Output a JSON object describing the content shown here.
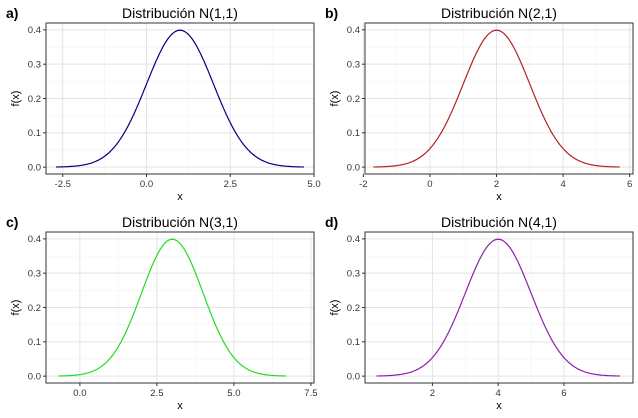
{
  "chart_data": [
    {
      "type": "line",
      "tag": "a)",
      "title": "Distribución N(1,1)",
      "xlabel": "x",
      "ylabel": "f(x)",
      "mean": 1,
      "sd": 1,
      "x": [
        -2.7,
        -2.0,
        -1.5,
        -1.0,
        -0.5,
        0.0,
        0.5,
        1.0,
        1.5,
        2.0,
        2.5,
        3.0,
        3.5,
        4.0,
        4.7
      ],
      "y": [
        0.0004,
        0.0044,
        0.0175,
        0.054,
        0.1295,
        0.242,
        0.3521,
        0.3989,
        0.3521,
        0.242,
        0.1295,
        0.054,
        0.0175,
        0.0044,
        0.0004
      ],
      "xlim": [
        -3.0,
        5.0
      ],
      "ylim": [
        0,
        0.4
      ],
      "xticks": [
        -2.5,
        0.0,
        2.5,
        5.0
      ],
      "xtick_labels": [
        "-2.5",
        "0.0",
        "2.5",
        "5.0"
      ],
      "yticks": [
        0.0,
        0.1,
        0.2,
        0.3,
        0.4
      ],
      "ytick_labels": [
        "0.0",
        "0.1",
        "0.2",
        "0.3",
        "0.4"
      ],
      "color": "#000080",
      "grid": true
    },
    {
      "type": "line",
      "tag": "b)",
      "title": "Distribución N(2,1)",
      "xlabel": "x",
      "ylabel": "f(x)",
      "mean": 2,
      "sd": 1,
      "x": [
        -1.7,
        -1.0,
        -0.5,
        0.0,
        0.5,
        1.0,
        1.5,
        2.0,
        2.5,
        3.0,
        3.5,
        4.0,
        4.5,
        5.0,
        5.7
      ],
      "y": [
        0.0004,
        0.0044,
        0.0175,
        0.054,
        0.1295,
        0.242,
        0.3521,
        0.3989,
        0.3521,
        0.242,
        0.1295,
        0.054,
        0.0175,
        0.0044,
        0.0004
      ],
      "xlim": [
        -1.95,
        6.1
      ],
      "ylim": [
        0,
        0.4
      ],
      "xticks": [
        -2,
        0,
        2,
        4,
        6
      ],
      "xtick_labels": [
        "-2",
        "0",
        "2",
        "4",
        "6"
      ],
      "yticks": [
        0.0,
        0.1,
        0.2,
        0.3,
        0.4
      ],
      "ytick_labels": [
        "0.0",
        "0.1",
        "0.2",
        "0.3",
        "0.4"
      ],
      "color": "#b22222",
      "grid": true
    },
    {
      "type": "line",
      "tag": "c)",
      "title": "Distribución N(3,1)",
      "xlabel": "x",
      "ylabel": "f(x)",
      "mean": 3,
      "sd": 1,
      "x": [
        -0.7,
        0.0,
        0.5,
        1.0,
        1.5,
        2.0,
        2.5,
        3.0,
        3.5,
        4.0,
        4.5,
        5.0,
        5.5,
        6.0,
        6.7
      ],
      "y": [
        0.0004,
        0.0044,
        0.0175,
        0.054,
        0.1295,
        0.242,
        0.3521,
        0.3989,
        0.3521,
        0.242,
        0.1295,
        0.054,
        0.0175,
        0.0044,
        0.0004
      ],
      "xlim": [
        -1.1,
        7.6
      ],
      "ylim": [
        0,
        0.4
      ],
      "xticks": [
        0.0,
        2.5,
        5.0,
        7.5
      ],
      "xtick_labels": [
        "0.0",
        "2.5",
        "5.0",
        "7.5"
      ],
      "yticks": [
        0.0,
        0.1,
        0.2,
        0.3,
        0.4
      ],
      "ytick_labels": [
        "0.0",
        "0.1",
        "0.2",
        "0.3",
        "0.4"
      ],
      "color": "#22dd22",
      "grid": true
    },
    {
      "type": "line",
      "tag": "d)",
      "title": "Distribución N(4,1)",
      "xlabel": "x",
      "ylabel": "f(x)",
      "mean": 4,
      "sd": 1,
      "x": [
        0.3,
        1.0,
        1.5,
        2.0,
        2.5,
        3.0,
        3.5,
        4.0,
        4.5,
        5.0,
        5.5,
        6.0,
        6.5,
        7.0,
        7.7
      ],
      "y": [
        0.0004,
        0.0044,
        0.0175,
        0.054,
        0.1295,
        0.242,
        0.3521,
        0.3989,
        0.3521,
        0.242,
        0.1295,
        0.054,
        0.0175,
        0.0044,
        0.0004
      ],
      "xlim": [
        -0.05,
        8.1
      ],
      "ylim": [
        0,
        0.4
      ],
      "xticks": [
        2,
        4,
        6
      ],
      "xtick_labels": [
        "2",
        "4",
        "6"
      ],
      "yticks": [
        0.0,
        0.1,
        0.2,
        0.3,
        0.4
      ],
      "ytick_labels": [
        "0.0",
        "0.1",
        "0.2",
        "0.3",
        "0.4"
      ],
      "color": "#8b22a8",
      "grid": true
    }
  ]
}
